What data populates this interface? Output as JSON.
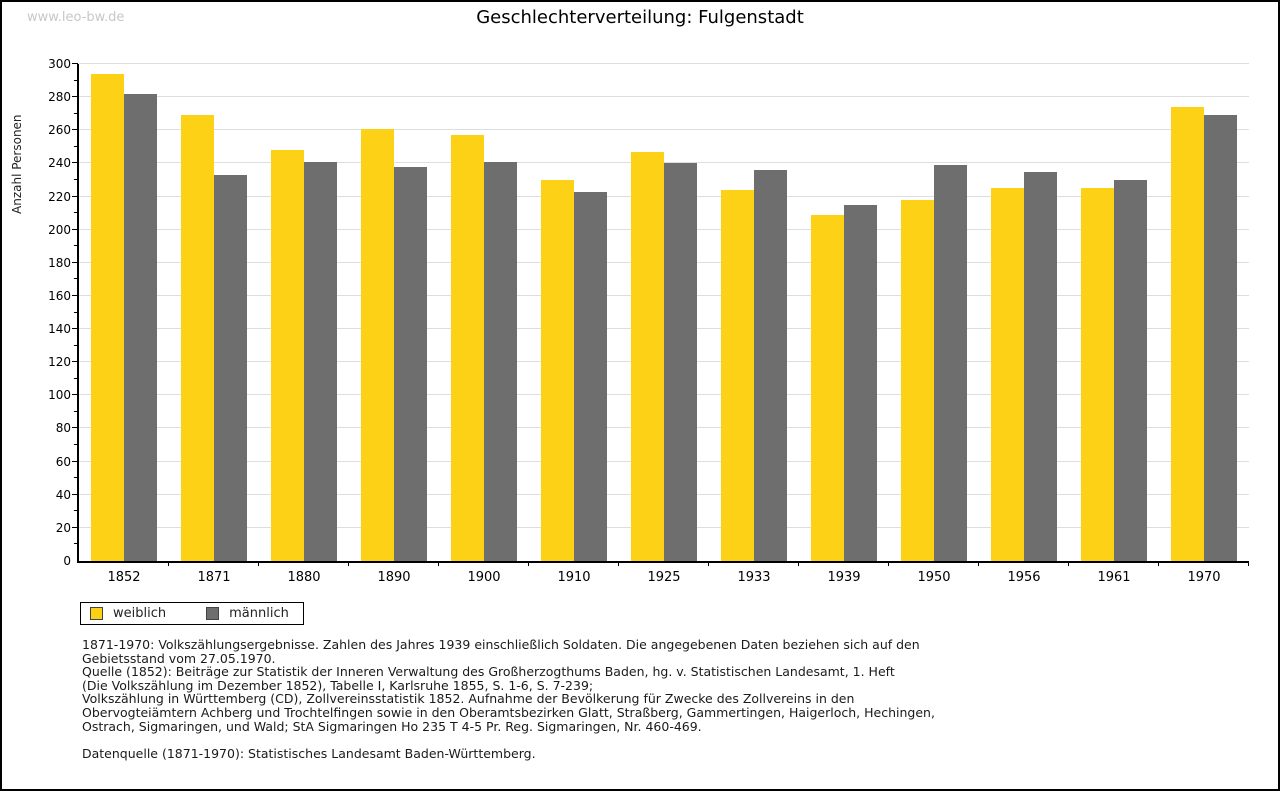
{
  "watermark": "www.leo-bw.de",
  "chart_data": {
    "type": "bar",
    "title": "Geschlechterverteilung: Fulgenstadt",
    "ylabel": "Anzahl Personen",
    "xlabel": "",
    "ylim": [
      0,
      300
    ],
    "ytick_major": 20,
    "ytick_minor": 10,
    "grid": true,
    "legend_position": "bottom-left",
    "categories": [
      "1852",
      "1871",
      "1880",
      "1890",
      "1900",
      "1910",
      "1925",
      "1933",
      "1939",
      "1950",
      "1956",
      "1961",
      "1970"
    ],
    "series": [
      {
        "name": "weiblich",
        "color": "#FCD116",
        "values": [
          294,
          269,
          248,
          261,
          257,
          230,
          247,
          224,
          209,
          218,
          225,
          225,
          274
        ]
      },
      {
        "name": "männlich",
        "color": "#6E6E6E",
        "values": [
          282,
          233,
          241,
          238,
          241,
          223,
          240,
          236,
          215,
          239,
          235,
          230,
          269
        ]
      }
    ]
  },
  "legend": {
    "items": [
      {
        "label": "weiblich",
        "color": "#FCD116"
      },
      {
        "label": "männlich",
        "color": "#6E6E6E"
      }
    ]
  },
  "footnotes": {
    "lines": [
      "1871-1970: Volkszählungsergebnisse. Zahlen des Jahres 1939 einschließlich Soldaten. Die angegebenen Daten beziehen sich auf den",
      "Gebietsstand vom 27.05.1970.",
      "Quelle (1852): Beiträge zur Statistik der Inneren Verwaltung des Großherzogthums Baden, hg. v. Statistischen Landesamt, 1. Heft",
      "(Die Volkszählung im Dezember 1852), Tabelle I, Karlsruhe 1855, S. 1-6, S. 7-239;",
      "Volkszählung in Württemberg (CD), Zollvereinsstatistik 1852. Aufnahme der Bevölkerung für Zwecke des Zollvereins in den",
      "Obervogteiämtern Achberg und Trochtelfingen sowie in den Oberamtsbezirken Glatt, Straßberg, Gammertingen, Haigerloch, Hechingen,",
      "Ostrach, Sigmaringen, und Wald; StA Sigmaringen Ho 235 T 4-5 Pr. Reg. Sigmaringen, Nr. 460-469."
    ],
    "datenquelle": "Datenquelle (1871-1970): Statistisches Landesamt Baden-Württemberg."
  }
}
